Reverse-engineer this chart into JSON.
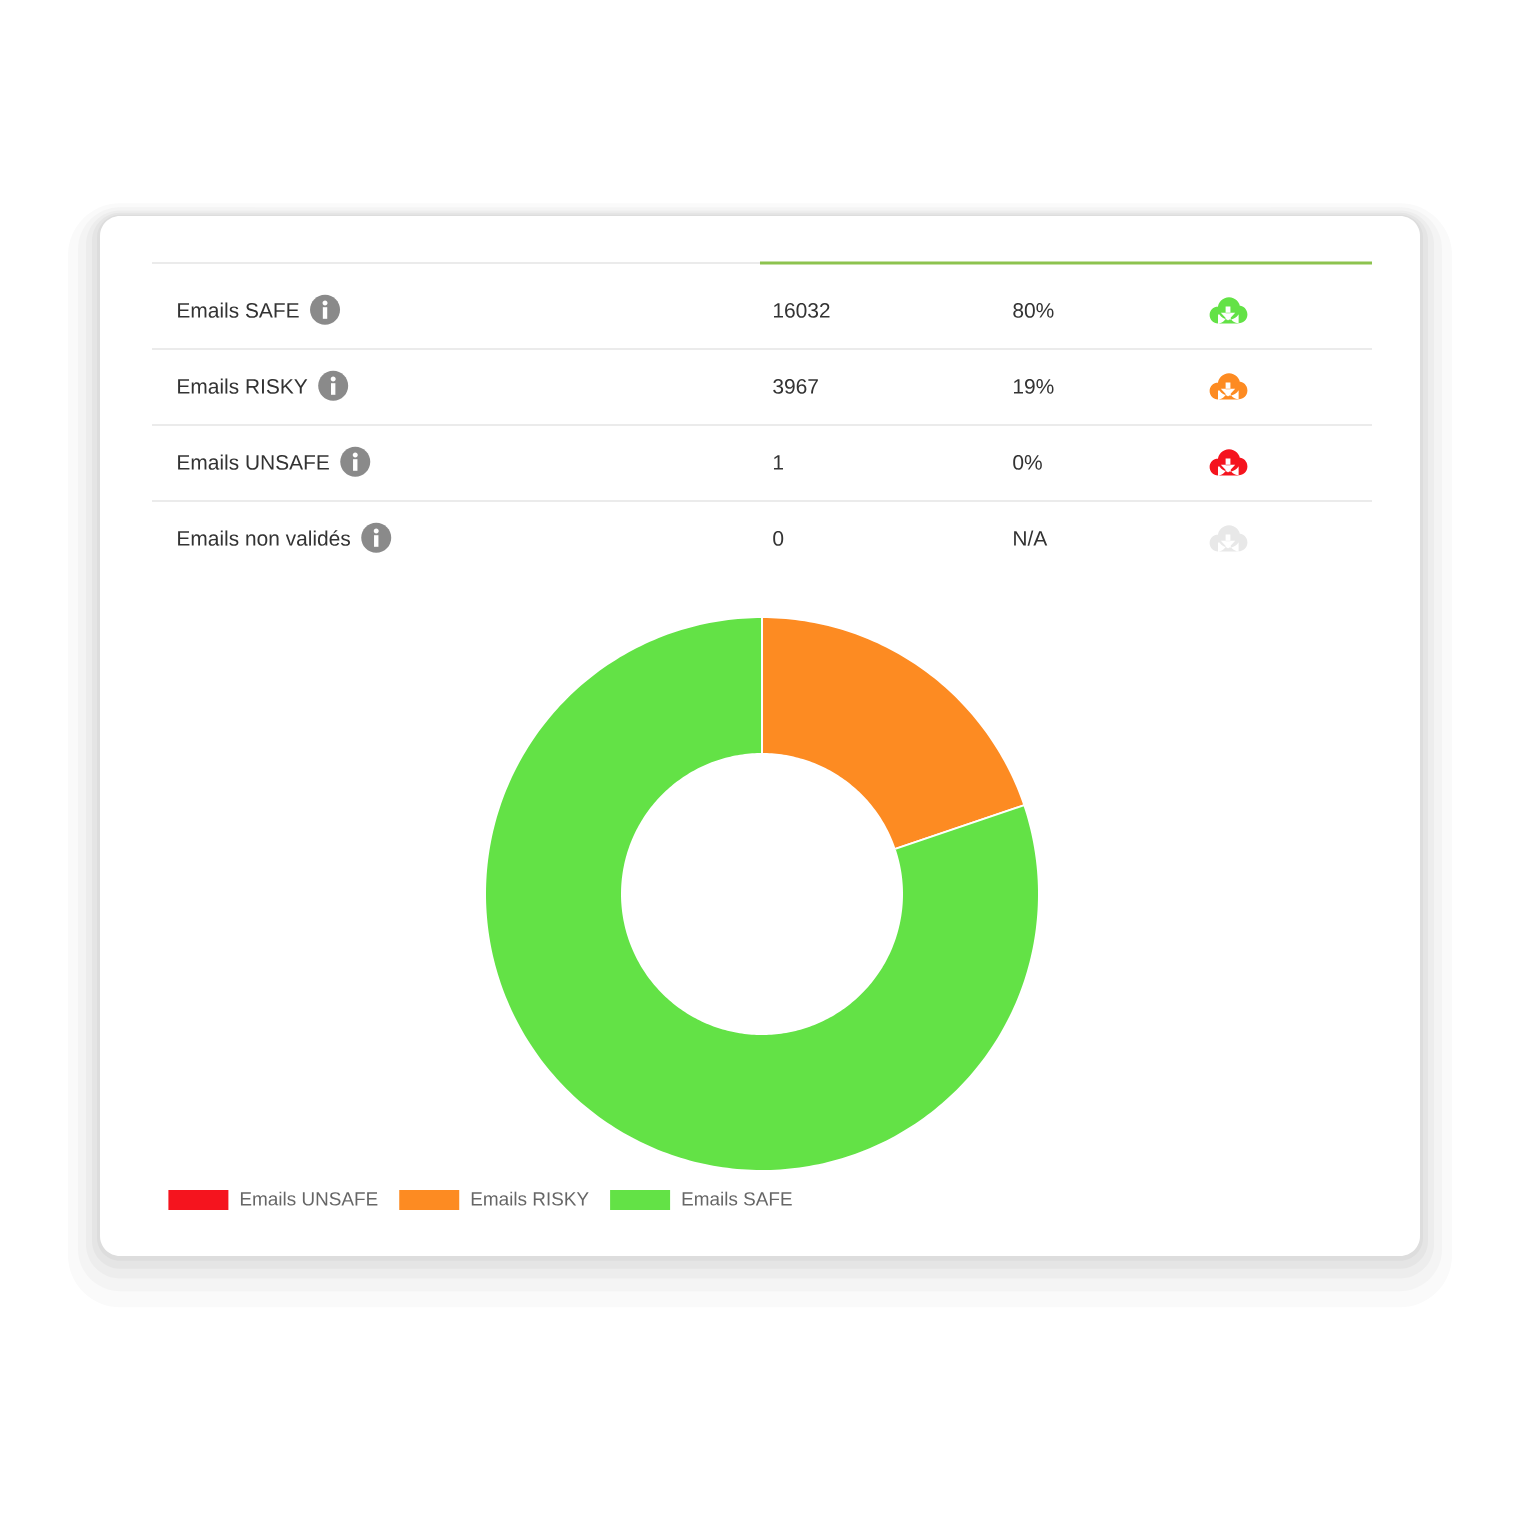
{
  "chart_data": [
    {
      "type": "other",
      "categories": [
        "Emails SAFE",
        "Emails RISKY",
        "Emails UNSAFE",
        "Emails non validés"
      ],
      "values": [
        16032,
        3967,
        1,
        0
      ],
      "data_labels": true,
      "annotations": [
        "80%",
        "19%",
        "0%",
        "N/A"
      ],
      "colors": [
        "#63e246",
        "#fd8b22",
        "#f5141e",
        "#e8e8e8"
      ]
    },
    {
      "type": "donut",
      "categories": [
        "Emails UNSAFE",
        "Emails RISKY",
        "Emails SAFE"
      ],
      "values": [
        0,
        19.8,
        80.2
      ],
      "colors": [
        "#f5141e",
        "#fd8b22",
        "#63e246"
      ],
      "legend": "bottom"
    }
  ]
}
